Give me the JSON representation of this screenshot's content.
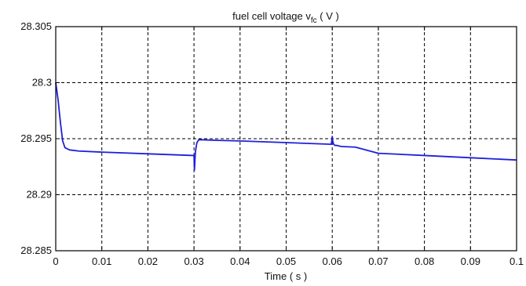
{
  "chart_data": {
    "type": "line",
    "title": {
      "main": "fuel cell voltage  v",
      "subscript": "fc",
      "units": " ( V )"
    },
    "xlabel": "Time ( s )",
    "ylabel": "",
    "xlim": [
      0,
      0.1
    ],
    "ylim": [
      28.285,
      28.305
    ],
    "x_ticks": [
      0,
      0.01,
      0.02,
      0.03,
      0.04,
      0.05,
      0.06,
      0.07,
      0.08,
      0.09,
      0.1
    ],
    "x_tick_labels": [
      "0",
      "0.01",
      "0.02",
      "0.03",
      "0.04",
      "0.05",
      "0.06",
      "0.07",
      "0.08",
      "0.09",
      "0.1"
    ],
    "y_ticks": [
      28.285,
      28.29,
      28.295,
      28.3,
      28.305
    ],
    "y_tick_labels": [
      "28.285",
      "28.29",
      "28.295",
      "28.3",
      "28.305"
    ],
    "grid": true,
    "grid_style": "dashed",
    "series": [
      {
        "color": "#1f1fdc",
        "x": [
          0,
          0.0005,
          0.001,
          0.0015,
          0.002,
          0.003,
          0.005,
          0.01,
          0.02,
          0.0298,
          0.03,
          0.0301,
          0.0303,
          0.0306,
          0.031,
          0.032,
          0.035,
          0.04,
          0.05,
          0.0598,
          0.06,
          0.0601,
          0.0603,
          0.0606,
          0.061,
          0.062,
          0.065,
          0.07,
          0.08,
          0.09,
          0.1
        ],
        "y": [
          28.3,
          28.2985,
          28.2965,
          28.2948,
          28.2942,
          28.294,
          28.2939,
          28.2938,
          28.29365,
          28.2935,
          28.2935,
          28.2922,
          28.2938,
          28.2946,
          28.2949,
          28.2949,
          28.29485,
          28.2948,
          28.29465,
          28.2945,
          28.2952,
          28.2948,
          28.2945,
          28.2944,
          28.2944,
          28.2943,
          28.29425,
          28.2937,
          28.2935,
          28.2933,
          28.2931
        ]
      }
    ]
  }
}
